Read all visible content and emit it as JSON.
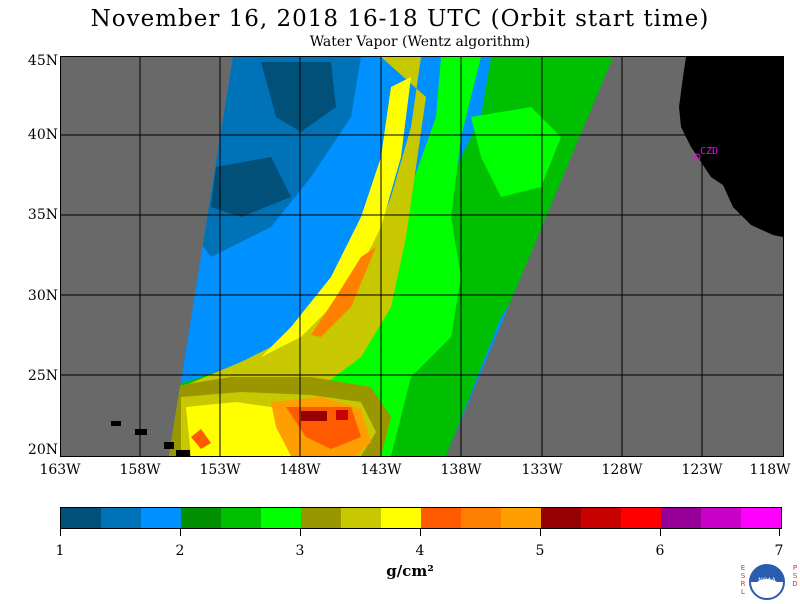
{
  "title": "November 16, 2018  16-18 UTC  (Orbit start time)",
  "subtitle": "Water Vapor (Wentz algorithm)",
  "latitude_labels": [
    "45N",
    "40N",
    "35N",
    "30N",
    "25N",
    "20N"
  ],
  "longitude_labels": [
    "163W",
    "158W",
    "153W",
    "148W",
    "143W",
    "138W",
    "133W",
    "128W",
    "123W",
    "118W"
  ],
  "station": {
    "label": "CZD",
    "color": "#ff00ff"
  },
  "colorbar": {
    "colors": [
      "#00507a",
      "#0073b8",
      "#0090ff",
      "#008f00",
      "#00bf00",
      "#00ff00",
      "#9a9600",
      "#c8c800",
      "#ffff00",
      "#ff5a00",
      "#ff7f00",
      "#ff9e00",
      "#960000",
      "#c80000",
      "#ff0000",
      "#960096",
      "#c800c8",
      "#ff00ff"
    ],
    "tick_labels": [
      "1",
      "2",
      "3",
      "4",
      "5",
      "6",
      "7"
    ],
    "unit": "g/cm²"
  },
  "logo": {
    "left": "ESRL",
    "right": "PSD",
    "center": "NOAA"
  }
}
